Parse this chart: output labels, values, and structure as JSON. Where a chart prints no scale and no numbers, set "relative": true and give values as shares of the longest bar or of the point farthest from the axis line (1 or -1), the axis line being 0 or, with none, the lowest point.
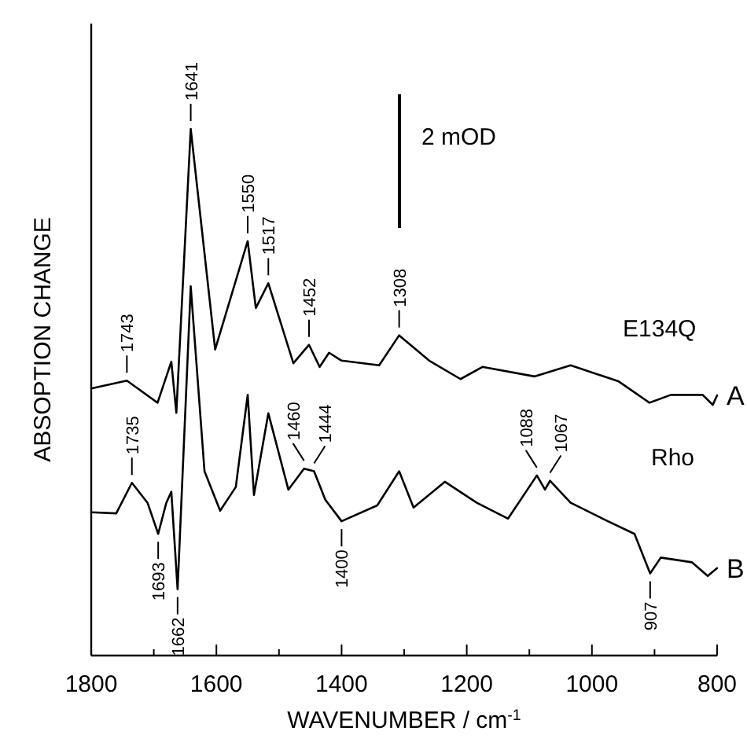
{
  "chart_data": {
    "type": "line",
    "relative": true,
    "xlabel": "WAVENUMBER / cm$^{-1}$",
    "ylabel": "ABSOPTION CHANGE",
    "xlim": [
      1800,
      800
    ],
    "xticks": [
      1800,
      {
        "value": 1700,
        "label": null
      },
      1600,
      {
        "value": 1500,
        "label": null
      },
      1400,
      {
        "value": 1300,
        "label": null
      },
      1200,
      {
        "value": 1100,
        "label": null
      },
      1000,
      {
        "value": 900,
        "label": null
      },
      800
    ],
    "grid": false,
    "marker": "none",
    "line_style": "solid",
    "series": [
      {
        "name": "A",
        "color": "#000000",
        "x": [
          1800,
          1743,
          1694,
          1672,
          1664,
          1641,
          1602,
          1550,
          1537,
          1517,
          1477,
          1452,
          1435,
          1420,
          1400,
          1340,
          1308,
          1260,
          1210,
          1175,
          1092,
          1034,
          958,
          908,
          874,
          823,
          807,
          800
        ],
        "values": [
          0.507,
          0.522,
          0.48,
          0.558,
          0.461,
          1,
          0.581,
          0.787,
          0.66,
          0.707,
          0.555,
          0.59,
          0.548,
          0.575,
          0.56,
          0.551,
          0.608,
          0.56,
          0.525,
          0.548,
          0.53,
          0.551,
          0.521,
          0.48,
          0.495,
          0.495,
          0.476,
          0.494
        ]
      },
      {
        "name": "B",
        "color": "#000000",
        "x": [
          1800,
          1760,
          1735,
          1710,
          1693,
          1680,
          1672,
          1662,
          1641,
          1619,
          1594,
          1569,
          1550,
          1540,
          1517,
          1485,
          1460,
          1444,
          1426,
          1400,
          1343,
          1308,
          1285,
          1235,
          1184,
          1134,
          1088,
          1075,
          1067,
          1034,
          983,
          932,
          907,
          890,
          840,
          815,
          800
        ],
        "values": [
          0.272,
          0.27,
          0.328,
          0.29,
          0.231,
          0.29,
          0.311,
          0.126,
          0.701,
          0.35,
          0.275,
          0.32,
          0.495,
          0.305,
          0.46,
          0.315,
          0.355,
          0.35,
          0.296,
          0.255,
          0.285,
          0.35,
          0.281,
          0.33,
          0.29,
          0.26,
          0.342,
          0.315,
          0.332,
          0.29,
          0.26,
          0.231,
          0.156,
          0.186,
          0.177,
          0.151,
          0.166
        ]
      }
    ],
    "annotations": [
      "2 mOD",
      "E134Q",
      "Rho",
      {
        "text": "1743",
        "x": 1743,
        "y": 0.522
      },
      {
        "text": "1641",
        "x": 1641,
        "y": 1
      },
      {
        "text": "1550",
        "x": 1550,
        "y": 0.787
      },
      {
        "text": "1517",
        "x": 1517,
        "y": 0.707
      },
      {
        "text": "1452",
        "x": 1452,
        "y": 0.59
      },
      {
        "text": "1308",
        "x": 1308,
        "y": 0.608
      },
      {
        "text": "1735",
        "x": 1735,
        "y": 0.328
      },
      {
        "text": "1693",
        "x": 1693,
        "y": 0.231
      },
      {
        "text": "1662",
        "x": 1662,
        "y": 0.126
      },
      {
        "text": "1460",
        "x": 1460,
        "y": 0.355
      },
      {
        "text": "1444",
        "x": 1444,
        "y": 0.35
      },
      {
        "text": "1400",
        "x": 1400,
        "y": 0.255
      },
      {
        "text": "1088",
        "x": 1088,
        "y": 0.342
      },
      {
        "text": "1067",
        "x": 1067,
        "y": 0.332
      },
      {
        "text": "907",
        "x": 907,
        "y": 0.156
      }
    ]
  }
}
